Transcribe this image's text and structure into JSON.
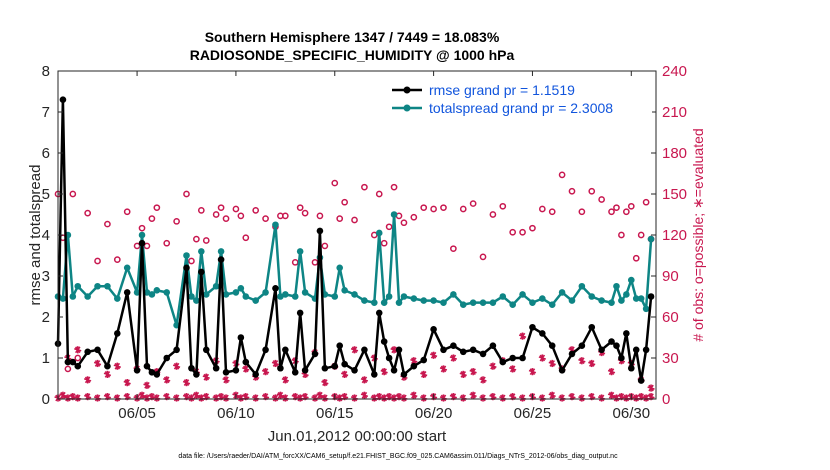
{
  "chart_data": {
    "type": "line",
    "title_line1": "Southern Hemisphere 1347 / 7449 = 18.083%",
    "title_line2": "RADIOSONDE_SPECIFIC_HUMIDITY @ 1000 hPa",
    "xlabel": "Jun.01,2012 00:00:00 start",
    "ylabel_left": "rmse and totalspread",
    "ylabel_right": "# of obs: o=possible; ∗=evaluated",
    "footer": "data file: /Users/raeder/DAI/ATM_forcXX/CAM6_setup/f.e21.FHIST_BGC.f09_025.CAM6assim.011/Diags_NTrS_2012-06/obs_diag_output.nc",
    "legend": [
      "rmse grand pr = 1.1519",
      "totalspread grand pr = 2.3008"
    ],
    "xlim": [
      1.0,
      31.25
    ],
    "ylim_left": [
      0,
      8
    ],
    "ylim_right": [
      0,
      240
    ],
    "x_ticks": [
      5,
      10,
      15,
      20,
      25,
      30
    ],
    "x_tick_labels": [
      "06/05",
      "06/10",
      "06/15",
      "06/20",
      "06/25",
      "06/30"
    ],
    "y_left_ticks": [
      0,
      1,
      2,
      3,
      4,
      5,
      6,
      7,
      8
    ],
    "y_right_ticks": [
      0,
      30,
      60,
      90,
      120,
      150,
      180,
      210,
      240
    ],
    "colors": {
      "rmse": "#000000",
      "spread": "#0e8585",
      "obs": "#c8174f",
      "axis": "#262626"
    },
    "x": [
      1.0,
      1.25,
      1.5,
      1.75,
      2.0,
      2.5,
      3.0,
      3.5,
      4.0,
      4.5,
      5.0,
      5.25,
      5.5,
      5.75,
      6.0,
      6.5,
      7.0,
      7.5,
      7.75,
      8.0,
      8.25,
      8.5,
      9.0,
      9.25,
      9.5,
      10.0,
      10.25,
      10.5,
      11.0,
      11.5,
      12.0,
      12.25,
      12.5,
      13.0,
      13.25,
      13.5,
      14.0,
      14.25,
      14.5,
      15.0,
      15.25,
      15.5,
      16.0,
      16.5,
      17.0,
      17.25,
      17.5,
      17.75,
      18.0,
      18.25,
      18.5,
      19.0,
      19.5,
      20.0,
      20.5,
      21.0,
      21.5,
      22.0,
      22.5,
      23.0,
      23.5,
      24.0,
      24.5,
      25.0,
      25.5,
      26.0,
      26.5,
      27.0,
      27.5,
      28.0,
      28.5,
      29.0,
      29.25,
      29.5,
      29.75,
      30.0,
      30.25,
      30.5,
      30.75,
      31.0
    ],
    "series": [
      {
        "name": "rmse",
        "values": [
          1.35,
          7.3,
          0.9,
          0.9,
          0.8,
          1.15,
          1.2,
          0.8,
          1.6,
          2.6,
          0.7,
          3.8,
          0.8,
          0.65,
          0.6,
          1.0,
          1.2,
          3.2,
          0.75,
          0.6,
          3.1,
          1.2,
          0.75,
          3.4,
          0.65,
          0.7,
          1.5,
          0.9,
          0.6,
          1.2,
          2.7,
          0.75,
          1.2,
          0.65,
          2.1,
          0.7,
          1.1,
          4.1,
          0.75,
          0.8,
          1.3,
          0.85,
          0.7,
          1.2,
          0.6,
          2.1,
          1.4,
          1.0,
          0.7,
          1.2,
          0.6,
          0.8,
          0.95,
          1.7,
          1.2,
          1.3,
          1.15,
          1.2,
          1.1,
          1.3,
          0.9,
          1.0,
          1.0,
          1.75,
          1.6,
          1.3,
          0.7,
          1.1,
          1.3,
          1.75,
          1.2,
          1.4,
          1.3,
          1.0,
          1.6,
          0.75,
          1.2,
          0.45,
          1.2,
          2.5
        ]
      },
      {
        "name": "totalspread",
        "values": [
          2.5,
          2.45,
          4.0,
          2.5,
          2.75,
          2.5,
          2.75,
          2.75,
          2.45,
          3.2,
          2.6,
          4.0,
          2.6,
          2.55,
          2.65,
          2.6,
          1.8,
          3.5,
          2.5,
          2.4,
          3.6,
          2.55,
          2.75,
          3.6,
          2.55,
          2.6,
          2.7,
          2.5,
          2.4,
          2.6,
          4.25,
          2.5,
          2.55,
          2.5,
          3.6,
          2.6,
          2.45,
          3.45,
          2.55,
          2.5,
          3.2,
          2.65,
          2.55,
          2.4,
          2.35,
          4.05,
          2.35,
          2.5,
          4.5,
          2.35,
          2.5,
          2.45,
          2.4,
          2.4,
          2.35,
          2.55,
          2.3,
          2.35,
          2.35,
          2.35,
          2.5,
          2.3,
          2.55,
          2.35,
          2.45,
          2.3,
          2.6,
          2.4,
          2.75,
          2.5,
          2.4,
          2.35,
          2.75,
          2.4,
          2.55,
          2.9,
          2.45,
          2.45,
          2.2,
          3.9
        ]
      },
      {
        "name": "possible",
        "values": [
          150,
          118,
          22,
          150,
          30,
          136,
          101,
          128,
          102,
          137,
          112,
          125,
          112,
          132,
          140,
          114,
          130,
          150,
          101,
          117,
          138,
          116,
          135,
          140,
          132,
          139,
          134,
          118,
          138,
          132,
          126,
          134,
          134,
          100,
          140,
          136,
          100,
          134,
          112,
          158,
          132,
          144,
          131,
          155,
          120,
          150,
          114,
          126,
          155,
          134,
          129,
          133,
          140,
          139,
          140,
          110,
          139,
          143,
          104,
          135,
          141,
          122,
          122,
          125,
          139,
          137,
          164,
          152,
          137,
          152,
          146,
          137,
          140,
          120,
          137,
          141,
          103,
          120,
          144,
          117
        ]
      },
      {
        "name": "evaluated",
        "values": [
          0,
          2,
          0,
          1,
          0,
          1,
          0,
          1,
          0,
          1,
          0,
          2,
          0,
          1,
          0,
          1,
          0,
          1,
          0,
          2,
          0,
          1,
          0,
          1,
          0,
          2,
          0,
          1,
          0,
          1,
          0,
          2,
          0,
          1,
          0,
          1,
          0,
          2,
          0,
          1,
          0,
          1,
          0,
          2,
          0,
          1,
          0,
          1,
          0,
          1,
          0,
          2,
          0,
          1,
          0,
          1,
          0,
          2,
          0,
          1,
          0,
          1,
          0,
          1,
          0,
          2,
          0,
          1,
          0,
          1,
          0,
          2,
          0,
          1,
          0,
          1,
          0,
          1,
          0,
          1
        ]
      }
    ],
    "evaluated_markers": {
      "x": [
        1.5,
        2.0,
        2.5,
        3.0,
        3.5,
        4.0,
        4.5,
        5.0,
        5.5,
        6.0,
        6.5,
        7.0,
        7.5,
        8.0,
        8.5,
        9.0,
        9.5,
        10.0,
        10.5,
        11.0,
        11.5,
        12.0,
        12.5,
        13.0,
        13.5,
        14.0,
        14.5,
        15.0,
        15.5,
        16.0,
        16.5,
        17.0,
        17.5,
        18.0,
        18.5,
        19.0,
        19.5,
        20.0,
        20.5,
        21.0,
        21.5,
        22.0,
        22.5,
        23.0,
        23.5,
        24.0,
        24.5,
        25.0,
        25.5,
        26.0,
        26.5,
        27.0,
        27.5,
        28.0,
        28.5,
        29.0,
        29.5,
        30.0,
        30.5,
        31.0
      ],
      "values": [
        30,
        36,
        14,
        26,
        18,
        24,
        12,
        22,
        10,
        20,
        14,
        24,
        12,
        20,
        16,
        28,
        14,
        26,
        22,
        16,
        20,
        26,
        14,
        28,
        18,
        34,
        12,
        24,
        18,
        36,
        14,
        30,
        20,
        36,
        16,
        28,
        18,
        32,
        22,
        30,
        18,
        20,
        14,
        24,
        28,
        22,
        46,
        20,
        30,
        26,
        22,
        36,
        28,
        26,
        34,
        20,
        28,
        26,
        14,
        8
      ]
    }
  }
}
